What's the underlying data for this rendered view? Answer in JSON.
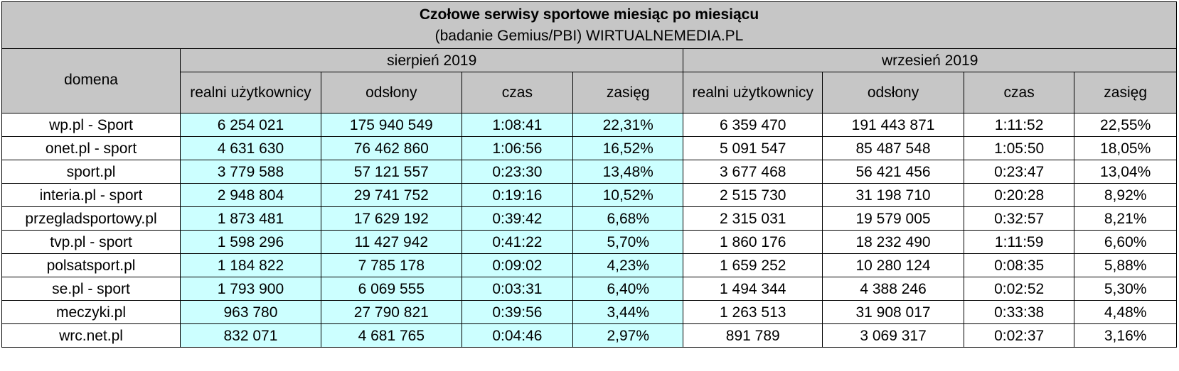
{
  "title": "Czołowe serwisy sportowe miesiąc po miesiącu",
  "subtitle": "(badanie Gemius/PBI) WIRTUALNEMEDIA.PL",
  "headers": {
    "domain": "domena",
    "month1": "sierpień 2019",
    "month2": "wrzesień 2019",
    "users": "realni użytkownicy",
    "views": "odsłony",
    "time": "czas",
    "reach": "zasięg"
  },
  "rows": [
    {
      "domain": "wp.pl - Sport",
      "aug": [
        "6 254 021",
        "175 940 549",
        "1:08:41",
        "22,31%"
      ],
      "sep": [
        "6 359 470",
        "191 443 871",
        "1:11:52",
        "22,55%"
      ]
    },
    {
      "domain": "onet.pl - sport",
      "aug": [
        "4 631 630",
        "76 462 860",
        "1:06:56",
        "16,52%"
      ],
      "sep": [
        "5 091 547",
        "85 487 548",
        "1:05:50",
        "18,05%"
      ]
    },
    {
      "domain": "sport.pl",
      "aug": [
        "3 779 588",
        "57 121 557",
        "0:23:30",
        "13,48%"
      ],
      "sep": [
        "3 677 468",
        "56 421 456",
        "0:23:47",
        "13,04%"
      ]
    },
    {
      "domain": "interia.pl - sport",
      "aug": [
        "2 948 804",
        "29 741 752",
        "0:19:16",
        "10,52%"
      ],
      "sep": [
        "2 515 730",
        "31 198 710",
        "0:20:28",
        "8,92%"
      ]
    },
    {
      "domain": "przegladsportowy.pl",
      "aug": [
        "1 873 481",
        "17 629 192",
        "0:39:42",
        "6,68%"
      ],
      "sep": [
        "2 315 031",
        "19 579 005",
        "0:32:57",
        "8,21%"
      ]
    },
    {
      "domain": "tvp.pl - sport",
      "aug": [
        "1 598 296",
        "11 427 942",
        "0:41:22",
        "5,70%"
      ],
      "sep": [
        "1 860 176",
        "18 232 490",
        "1:11:59",
        "6,60%"
      ]
    },
    {
      "domain": "polsatsport.pl",
      "aug": [
        "1 184 822",
        "7 785 178",
        "0:09:02",
        "4,23%"
      ],
      "sep": [
        "1 659 252",
        "10 280 124",
        "0:08:35",
        "5,88%"
      ]
    },
    {
      "domain": "se.pl - sport",
      "aug": [
        "1 793 900",
        "6 069 555",
        "0:03:31",
        "6,40%"
      ],
      "sep": [
        "1 494 344",
        "4 388 246",
        "0:02:52",
        "5,30%"
      ]
    },
    {
      "domain": "meczyki.pl",
      "aug": [
        "963 780",
        "27 790 821",
        "0:39:56",
        "3,44%"
      ],
      "sep": [
        "1 263 513",
        "31 908 017",
        "0:33:38",
        "4,48%"
      ]
    },
    {
      "domain": "wrc.net.pl",
      "aug": [
        "832 071",
        "4 681 765",
        "0:04:46",
        "2,97%"
      ],
      "sep": [
        "891 789",
        "3 069 317",
        "0:02:37",
        "3,16%"
      ]
    }
  ]
}
